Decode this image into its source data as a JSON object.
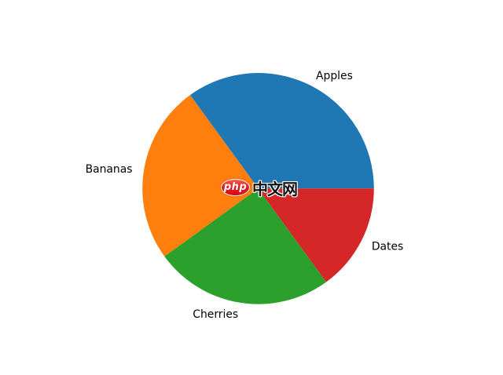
{
  "chart_data": {
    "type": "pie",
    "title": "",
    "labels": [
      "Apples",
      "Bananas",
      "Cherries",
      "Dates"
    ],
    "values": [
      35,
      25,
      25,
      15
    ],
    "colors": [
      "#1f77b4",
      "#ff7f0e",
      "#2ca02c",
      "#d62728"
    ],
    "start_angle": 0,
    "direction": "counterclockwise",
    "legend_position": "none",
    "label_color": "#000000",
    "background_color": "#ffffff"
  },
  "watermark": {
    "php_label": "php",
    "cn_label": "中文网",
    "badge_color": "#e51e24",
    "badge_text_color": "#ffffff",
    "cn_text_color": "#141414"
  }
}
